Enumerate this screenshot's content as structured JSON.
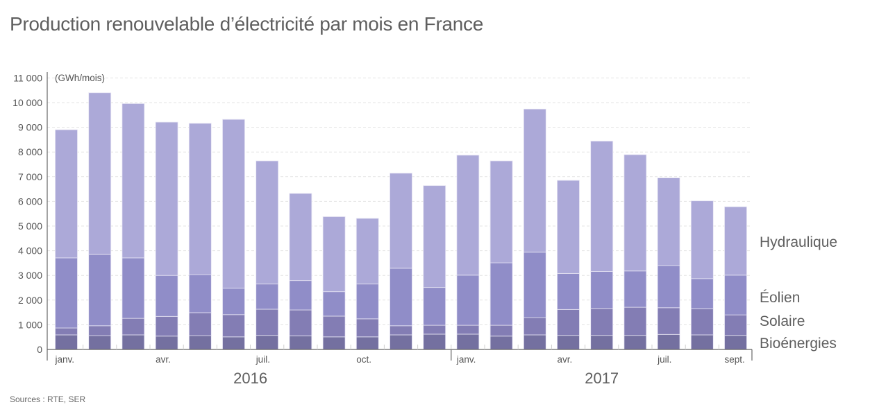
{
  "title": "Production renouvelable d’électricité par mois en France",
  "source": "Sources : RTE, SER",
  "chart_data": {
    "type": "bar",
    "stacked": true,
    "title": "Production renouvelable d’électricité par mois en France",
    "ylabel": "(GWh/mois)",
    "xlabel": "",
    "ylim": [
      0,
      11000
    ],
    "yticks": [
      0,
      1000,
      2000,
      3000,
      4000,
      5000,
      6000,
      7000,
      8000,
      9000,
      10000,
      11000
    ],
    "ytick_labels": [
      "0",
      "1 000",
      "2 000",
      "3 000",
      "4 000",
      "5 000",
      "6 000",
      "7 000",
      "8 000",
      "9 000",
      "10 000",
      "11 000"
    ],
    "grid": true,
    "legend_placement": "right",
    "categories": [
      "2016-01",
      "2016-02",
      "2016-03",
      "2016-04",
      "2016-05",
      "2016-06",
      "2016-07",
      "2016-08",
      "2016-09",
      "2016-10",
      "2016-11",
      "2016-12",
      "2017-01",
      "2017-02",
      "2017-03",
      "2017-04",
      "2017-05",
      "2017-06",
      "2017-07",
      "2017-08",
      "2017-09"
    ],
    "month_labels": [
      {
        "index": 0,
        "label": "janv."
      },
      {
        "index": 3,
        "label": "avr."
      },
      {
        "index": 6,
        "label": "juil."
      },
      {
        "index": 9,
        "label": "oct."
      },
      {
        "index": 12,
        "label": "janv."
      },
      {
        "index": 15,
        "label": "avr."
      },
      {
        "index": 18,
        "label": "juil."
      },
      {
        "index": 20,
        "label": "sept."
      }
    ],
    "year_labels": [
      {
        "label": "2016",
        "from": 0,
        "to": 11
      },
      {
        "label": "2017",
        "from": 12,
        "to": 20
      }
    ],
    "series": [
      {
        "name": "Bioénergies",
        "color": "#7470a0",
        "values": [
          590,
          560,
          590,
          540,
          560,
          510,
          570,
          550,
          510,
          510,
          590,
          620,
          620,
          540,
          590,
          570,
          570,
          570,
          610,
          590,
          570
        ]
      },
      {
        "name": "Solaire",
        "color": "#837db4",
        "values": [
          280,
          400,
          670,
          800,
          930,
          900,
          1060,
          1050,
          840,
          730,
          370,
          360,
          360,
          440,
          700,
          1050,
          1090,
          1140,
          1080,
          1060,
          830
        ]
      },
      {
        "name": "Éolien",
        "color": "#908dc8",
        "values": [
          2840,
          2890,
          2450,
          1660,
          1540,
          1070,
          1020,
          1190,
          990,
          1410,
          2330,
          1530,
          2030,
          2530,
          2650,
          1460,
          1500,
          1470,
          1710,
          1220,
          1610
        ]
      },
      {
        "name": "Hydraulique",
        "color": "#aca9d8",
        "values": [
          5190,
          6550,
          6250,
          6210,
          6130,
          6840,
          4990,
          3530,
          3040,
          2660,
          3850,
          4130,
          4860,
          4130,
          5800,
          3770,
          5280,
          4710,
          3550,
          3150,
          2770
        ]
      }
    ],
    "totals": [
      8900,
      10400,
      9960,
      9210,
      9160,
      9320,
      7640,
      6320,
      5380,
      5310,
      7140,
      6640,
      7870,
      7640,
      9740,
      6850,
      8440,
      7890,
      6950,
      6020,
      5780
    ],
    "legend": [
      {
        "name": "Hydraulique"
      },
      {
        "name": "Éolien"
      },
      {
        "name": "Solaire"
      },
      {
        "name": "Bioénergies"
      }
    ]
  }
}
